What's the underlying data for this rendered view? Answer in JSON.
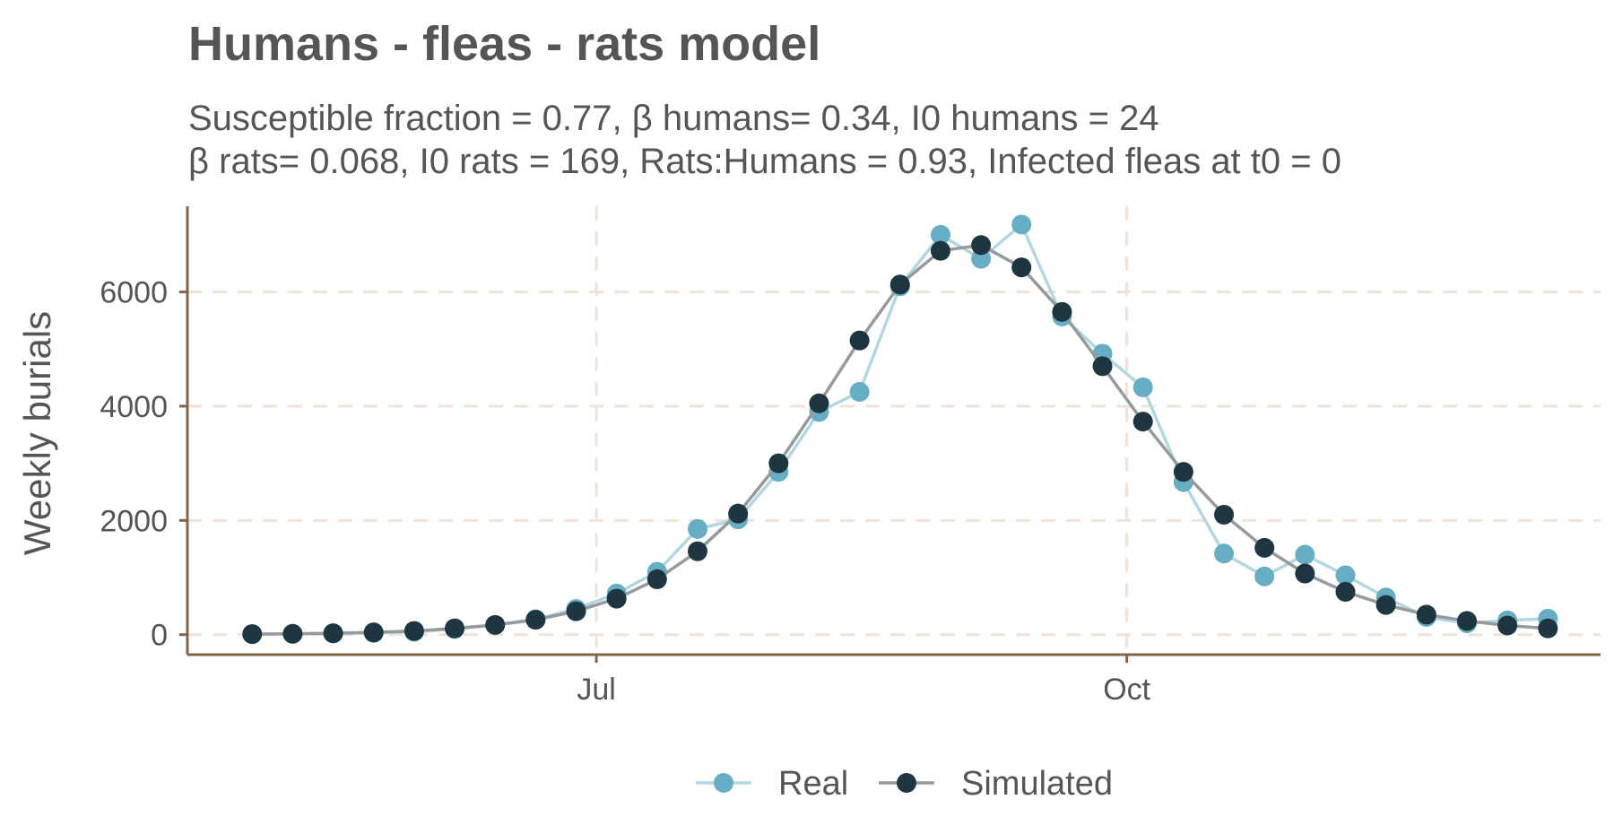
{
  "chart_data": {
    "type": "line",
    "title": "Humans - fleas - rats model",
    "subtitle_lines": [
      "Susceptible fraction = 0.77, β humans= 0.34, I0 humans = 24",
      "β rats= 0.068, I0 rats = 169, Rats:Humans = 0.93, Infected fleas at t0 = 0"
    ],
    "xlabel": "",
    "ylabel": "Weekly burials",
    "x_ticks": [
      "Jul",
      "Oct"
    ],
    "x_tick_weeks": [
      8.5,
      21.6
    ],
    "xlim": [
      -1.6,
      33.3
    ],
    "ylim": [
      -350,
      7500
    ],
    "y_ticks": [
      0,
      2000,
      4000,
      6000
    ],
    "grid": true,
    "legend_position": "bottom",
    "x": [
      0,
      1,
      2,
      3,
      4,
      5,
      6,
      7,
      8,
      9,
      10,
      11,
      12,
      13,
      14,
      15,
      16,
      17,
      18,
      19,
      20,
      21,
      22,
      23,
      24,
      25,
      26,
      27,
      28,
      29,
      30,
      31,
      32
    ],
    "series": [
      {
        "name": "Real",
        "color": "#67adc4",
        "line_color": "#b3d6e1",
        "values": [
          10,
          15,
          20,
          30,
          50,
          100,
          170,
          270,
          450,
          720,
          1100,
          1850,
          2020,
          2850,
          3900,
          4250,
          6100,
          7000,
          6580,
          7180,
          5570,
          4920,
          4330,
          2670,
          1420,
          1020,
          1400,
          1040,
          650,
          310,
          200,
          250,
          280
        ]
      },
      {
        "name": "Simulated",
        "color": "#1e3640",
        "line_color": "#959a9d",
        "values": [
          10,
          15,
          25,
          40,
          65,
          110,
          170,
          260,
          410,
          630,
          970,
          1460,
          2120,
          3000,
          4050,
          5150,
          6130,
          6720,
          6820,
          6430,
          5650,
          4700,
          3730,
          2850,
          2100,
          1520,
          1070,
          750,
          520,
          350,
          240,
          160,
          110
        ]
      }
    ]
  }
}
